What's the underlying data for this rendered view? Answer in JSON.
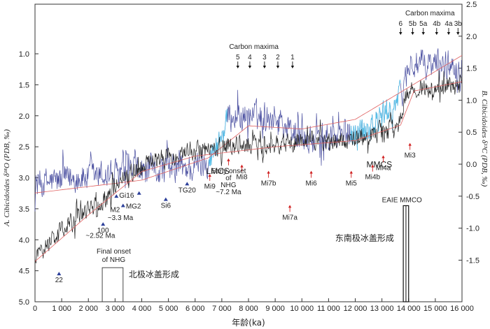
{
  "chart_data": {
    "type": "line",
    "x_axis": {
      "label": "年龄(ka)",
      "range": [
        0,
        16000
      ],
      "ticks": [
        0,
        1000,
        2000,
        3000,
        4000,
        5000,
        6000,
        7000,
        8000,
        9000,
        10000,
        11000,
        12000,
        13000,
        14000,
        15000,
        16000
      ],
      "tick_labels": [
        "0",
        "1 000",
        "2 000",
        "3 000",
        "4 000",
        "5 000",
        "6 000",
        "7 000",
        "8 000",
        "9 000",
        "10 000",
        "11 000",
        "12 000",
        "13 000",
        "14 000",
        "15 000",
        "16 000"
      ]
    },
    "left_axis": {
      "label": "A. Cibicidoides δ¹⁸O (PDB, ‰)",
      "range": [
        5.0,
        0.2
      ],
      "inverted": true,
      "ticks": [
        1.0,
        1.5,
        2.0,
        2.5,
        3.0,
        3.5,
        4.0,
        4.5,
        5.0
      ],
      "tick_labels": [
        "1.0",
        "1.5",
        "2.0",
        "2.5",
        "3.0",
        "3.5",
        "4.0",
        "4.5",
        "5.0"
      ]
    },
    "right_axis": {
      "label": "B. Cibicidoides δ¹³C (PDB, ‰)",
      "range": [
        -2.15,
        2.5
      ],
      "ticks": [
        -1.5,
        -1.0,
        -0.5,
        0.0,
        0.5,
        1.0,
        1.5,
        2.0,
        2.5
      ],
      "tick_labels": [
        "-1.5",
        "-1.0",
        "-0.5",
        "0.0",
        "0.5",
        "1.0",
        "1.5",
        "2.0",
        "2.5"
      ]
    },
    "series": [
      {
        "name": "δ13C",
        "color": "#4a4fa0",
        "highlight_color": "#56c3ea",
        "trend_color": "#e06060",
        "highlights": [
          [
            6500,
            7200
          ],
          [
            11800,
            13700
          ]
        ],
        "baseline": [
          [
            0,
            -0.3
          ],
          [
            2000,
            -0.2
          ],
          [
            4000,
            -0.1
          ],
          [
            6000,
            -0.05
          ],
          [
            6600,
            0.1
          ],
          [
            7300,
            0.75
          ],
          [
            9000,
            0.75
          ],
          [
            9800,
            0.45
          ],
          [
            10300,
            0.35
          ],
          [
            11500,
            0.45
          ],
          [
            12800,
            0.65
          ],
          [
            13700,
            1.05
          ],
          [
            14000,
            1.55
          ],
          [
            16000,
            1.55
          ]
        ],
        "noise_amplitude": 0.32,
        "trend": [
          [
            0,
            -0.45
          ],
          [
            4000,
            -0.25
          ],
          [
            6500,
            0.1
          ],
          [
            8000,
            0.6
          ],
          [
            10000,
            0.55
          ],
          [
            12000,
            0.7
          ],
          [
            14000,
            1.2
          ],
          [
            16000,
            1.7
          ]
        ]
      },
      {
        "name": "δ18O",
        "color": "#222222",
        "trend_color": "#e06060",
        "baseline": [
          [
            0,
            4.3
          ],
          [
            800,
            3.9
          ],
          [
            1600,
            3.65
          ],
          [
            2500,
            3.4
          ],
          [
            3200,
            3.05
          ],
          [
            4200,
            2.75
          ],
          [
            5500,
            2.6
          ],
          [
            7000,
            2.5
          ],
          [
            8500,
            2.45
          ],
          [
            10000,
            2.42
          ],
          [
            12000,
            2.38
          ],
          [
            13600,
            2.2
          ],
          [
            13900,
            1.7
          ],
          [
            14300,
            1.55
          ],
          [
            16000,
            1.5
          ]
        ],
        "noise_amplitude": 0.22,
        "trend": [
          [
            0,
            4.35
          ],
          [
            2000,
            3.6
          ],
          [
            4000,
            2.9
          ],
          [
            6000,
            2.65
          ],
          [
            9000,
            2.5
          ],
          [
            12000,
            2.4
          ],
          [
            13700,
            2.15
          ],
          [
            14200,
            1.6
          ],
          [
            16000,
            1.45
          ]
        ]
      }
    ],
    "carbon_maxima_groups": [
      {
        "title": "Carbon maxima",
        "title_x": 8200,
        "labels": [
          "5",
          "4",
          "3",
          "2",
          "1"
        ],
        "x": [
          7600,
          8050,
          8600,
          9100,
          9650
        ]
      },
      {
        "title": "Carbon maxima",
        "title_x": 14800,
        "labels": [
          "6",
          "5b",
          "5a",
          "4b",
          "4a",
          "3b"
        ],
        "x": [
          13700,
          14150,
          14550,
          15050,
          15500,
          15850
        ]
      }
    ],
    "region_labels": [
      {
        "text": "LMCS",
        "x": 6850,
        "y13c": -0.15
      },
      {
        "text": "MMCS",
        "x": 12900,
        "y13c": -0.05
      }
    ],
    "glacial_events": [
      {
        "label": "Mi3",
        "x": 14050,
        "y": 2.55
      },
      {
        "label": "Mi4a",
        "x": 13050,
        "y": 2.75
      },
      {
        "label": "Mi4b",
        "x": 12650,
        "y": 2.9
      },
      {
        "label": "Mi5",
        "x": 11850,
        "y": 3.0
      },
      {
        "label": "Mi6",
        "x": 10350,
        "y": 3.0
      },
      {
        "label": "Mi7a",
        "x": 9550,
        "y": 3.55
      },
      {
        "label": "Mi7b",
        "x": 8750,
        "y": 3.0
      },
      {
        "label": "Mi8",
        "x": 7750,
        "y": 2.9
      },
      {
        "label": "Early onset",
        "x": 7250,
        "y": 2.8
      },
      {
        "label": "Mi9",
        "x": 6550,
        "y": 3.05
      }
    ],
    "early_onset_text": [
      "Early onset",
      "of",
      "NHG",
      "~7.2 Ma"
    ],
    "triangle_events": [
      {
        "label": "Gi16",
        "x": 3050,
        "y": 3.3
      },
      {
        "label": "MG2",
        "x": 3300,
        "y": 3.45
      },
      {
        "label": "M2",
        "x": 3900,
        "y": 3.25
      },
      {
        "label": "Si6",
        "x": 4900,
        "y": 3.35
      },
      {
        "label": "TG20",
        "x": 5700,
        "y": 3.1
      },
      {
        "label": "100",
        "x": 2550,
        "y": 3.75
      },
      {
        "label": "22",
        "x": 900,
        "y": 4.55
      }
    ],
    "annotation_lines": [
      "~3.3 Ma",
      "~2.52 Ma",
      "Final onset",
      "of  NHG"
    ],
    "ice_sheet_bars": [
      {
        "label": "北极冰盖形成",
        "x0": 2520,
        "x1": 3300,
        "top": 4.45
      },
      {
        "label": "东南极冰盖形成",
        "x0": 13800,
        "x1": 14000,
        "top": 3.45
      }
    ],
    "eaie_label": "EAIE MMCO"
  }
}
